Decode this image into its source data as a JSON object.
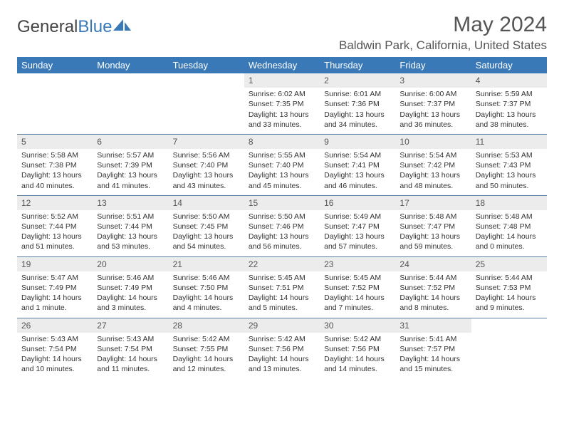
{
  "brand": {
    "part1": "General",
    "part2": "Blue"
  },
  "title": "May 2024",
  "location": "Baldwin Park, California, United States",
  "colors": {
    "header_bg": "#3a79b7",
    "header_fg": "#ffffff",
    "daynum_bg": "#ececec",
    "rule": "#5a7ea0",
    "text": "#333333",
    "title": "#555555"
  },
  "weekdays": [
    "Sunday",
    "Monday",
    "Tuesday",
    "Wednesday",
    "Thursday",
    "Friday",
    "Saturday"
  ],
  "grid": {
    "start_weekday_index": 3,
    "rows": 5,
    "cols": 7
  },
  "days": [
    {
      "n": 1,
      "sunrise": "6:02 AM",
      "sunset": "7:35 PM",
      "daylight": "13 hours and 33 minutes."
    },
    {
      "n": 2,
      "sunrise": "6:01 AM",
      "sunset": "7:36 PM",
      "daylight": "13 hours and 34 minutes."
    },
    {
      "n": 3,
      "sunrise": "6:00 AM",
      "sunset": "7:37 PM",
      "daylight": "13 hours and 36 minutes."
    },
    {
      "n": 4,
      "sunrise": "5:59 AM",
      "sunset": "7:37 PM",
      "daylight": "13 hours and 38 minutes."
    },
    {
      "n": 5,
      "sunrise": "5:58 AM",
      "sunset": "7:38 PM",
      "daylight": "13 hours and 40 minutes."
    },
    {
      "n": 6,
      "sunrise": "5:57 AM",
      "sunset": "7:39 PM",
      "daylight": "13 hours and 41 minutes."
    },
    {
      "n": 7,
      "sunrise": "5:56 AM",
      "sunset": "7:40 PM",
      "daylight": "13 hours and 43 minutes."
    },
    {
      "n": 8,
      "sunrise": "5:55 AM",
      "sunset": "7:40 PM",
      "daylight": "13 hours and 45 minutes."
    },
    {
      "n": 9,
      "sunrise": "5:54 AM",
      "sunset": "7:41 PM",
      "daylight": "13 hours and 46 minutes."
    },
    {
      "n": 10,
      "sunrise": "5:54 AM",
      "sunset": "7:42 PM",
      "daylight": "13 hours and 48 minutes."
    },
    {
      "n": 11,
      "sunrise": "5:53 AM",
      "sunset": "7:43 PM",
      "daylight": "13 hours and 50 minutes."
    },
    {
      "n": 12,
      "sunrise": "5:52 AM",
      "sunset": "7:44 PM",
      "daylight": "13 hours and 51 minutes."
    },
    {
      "n": 13,
      "sunrise": "5:51 AM",
      "sunset": "7:44 PM",
      "daylight": "13 hours and 53 minutes."
    },
    {
      "n": 14,
      "sunrise": "5:50 AM",
      "sunset": "7:45 PM",
      "daylight": "13 hours and 54 minutes."
    },
    {
      "n": 15,
      "sunrise": "5:50 AM",
      "sunset": "7:46 PM",
      "daylight": "13 hours and 56 minutes."
    },
    {
      "n": 16,
      "sunrise": "5:49 AM",
      "sunset": "7:47 PM",
      "daylight": "13 hours and 57 minutes."
    },
    {
      "n": 17,
      "sunrise": "5:48 AM",
      "sunset": "7:47 PM",
      "daylight": "13 hours and 59 minutes."
    },
    {
      "n": 18,
      "sunrise": "5:48 AM",
      "sunset": "7:48 PM",
      "daylight": "14 hours and 0 minutes."
    },
    {
      "n": 19,
      "sunrise": "5:47 AM",
      "sunset": "7:49 PM",
      "daylight": "14 hours and 1 minute."
    },
    {
      "n": 20,
      "sunrise": "5:46 AM",
      "sunset": "7:49 PM",
      "daylight": "14 hours and 3 minutes."
    },
    {
      "n": 21,
      "sunrise": "5:46 AM",
      "sunset": "7:50 PM",
      "daylight": "14 hours and 4 minutes."
    },
    {
      "n": 22,
      "sunrise": "5:45 AM",
      "sunset": "7:51 PM",
      "daylight": "14 hours and 5 minutes."
    },
    {
      "n": 23,
      "sunrise": "5:45 AM",
      "sunset": "7:52 PM",
      "daylight": "14 hours and 7 minutes."
    },
    {
      "n": 24,
      "sunrise": "5:44 AM",
      "sunset": "7:52 PM",
      "daylight": "14 hours and 8 minutes."
    },
    {
      "n": 25,
      "sunrise": "5:44 AM",
      "sunset": "7:53 PM",
      "daylight": "14 hours and 9 minutes."
    },
    {
      "n": 26,
      "sunrise": "5:43 AM",
      "sunset": "7:54 PM",
      "daylight": "14 hours and 10 minutes."
    },
    {
      "n": 27,
      "sunrise": "5:43 AM",
      "sunset": "7:54 PM",
      "daylight": "14 hours and 11 minutes."
    },
    {
      "n": 28,
      "sunrise": "5:42 AM",
      "sunset": "7:55 PM",
      "daylight": "14 hours and 12 minutes."
    },
    {
      "n": 29,
      "sunrise": "5:42 AM",
      "sunset": "7:56 PM",
      "daylight": "14 hours and 13 minutes."
    },
    {
      "n": 30,
      "sunrise": "5:42 AM",
      "sunset": "7:56 PM",
      "daylight": "14 hours and 14 minutes."
    },
    {
      "n": 31,
      "sunrise": "5:41 AM",
      "sunset": "7:57 PM",
      "daylight": "14 hours and 15 minutes."
    }
  ],
  "labels": {
    "sunrise_prefix": "Sunrise: ",
    "sunset_prefix": "Sunset: ",
    "daylight_prefix": "Daylight: "
  }
}
